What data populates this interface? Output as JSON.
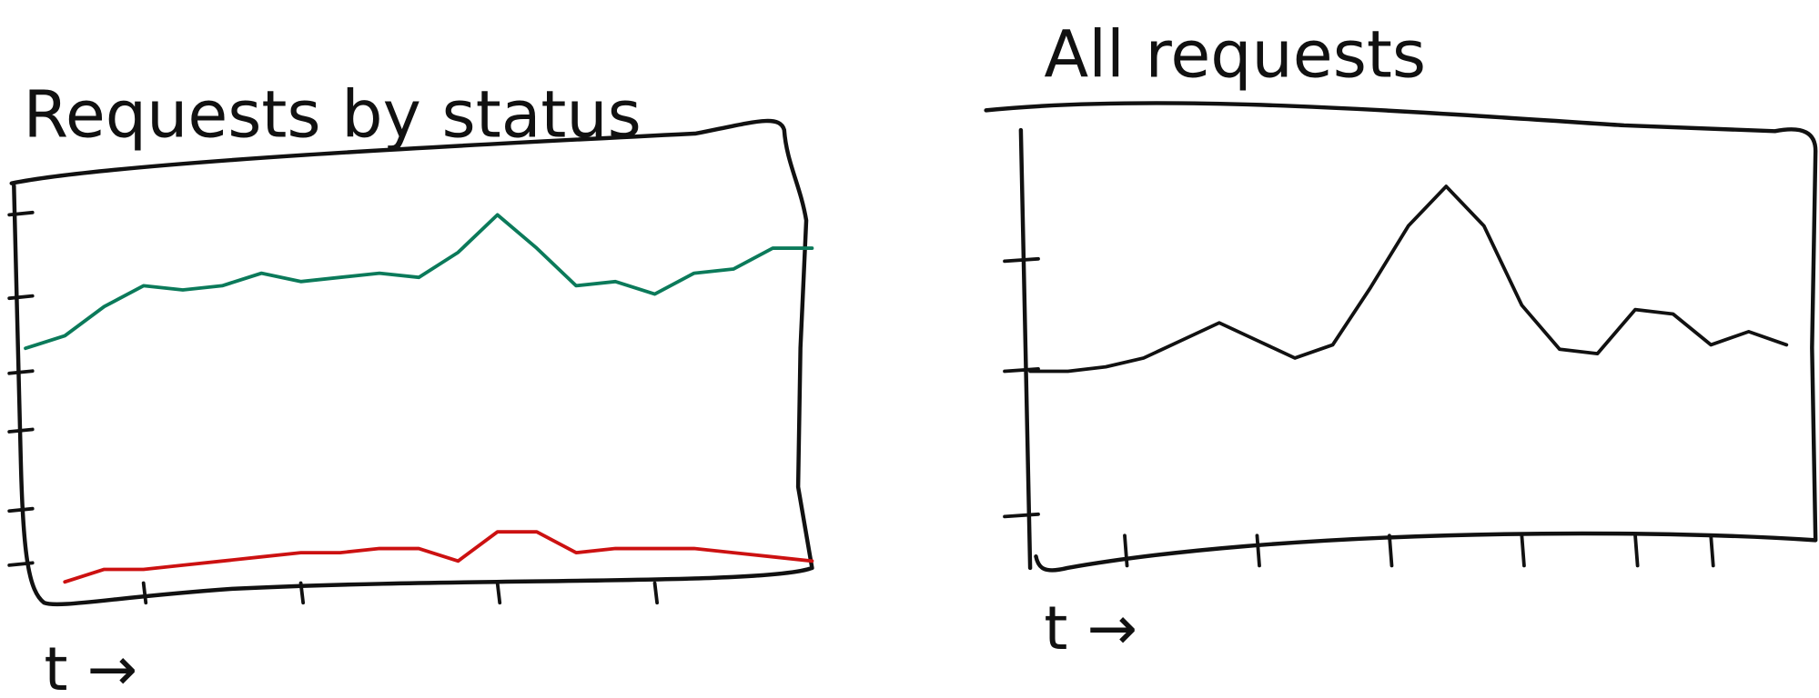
{
  "chart_data": [
    {
      "type": "line",
      "title": "Requests by status",
      "x_label": "t →",
      "x": [
        0,
        1,
        2,
        3,
        4,
        5,
        6,
        7,
        8,
        9,
        10,
        11,
        12,
        13,
        14,
        15,
        16,
        17,
        18,
        19,
        20
      ],
      "xlim": [
        0,
        20
      ],
      "ylim": [
        0,
        100
      ],
      "xticks": [
        3,
        7,
        12,
        16
      ],
      "yticks": [
        9,
        22,
        41,
        55,
        73,
        93
      ],
      "series": [
        {
          "color": "#0b7a5a",
          "values": [
            61,
            64,
            71,
            76,
            75,
            76,
            79,
            77,
            78,
            79,
            78,
            84,
            93,
            85,
            76,
            77,
            74,
            79,
            80,
            85,
            85
          ]
        },
        {
          "color": "#cc1111",
          "values": [
            null,
            5,
            8,
            8,
            9,
            10,
            11,
            12,
            12,
            13,
            13,
            10,
            17,
            17,
            12,
            13,
            13,
            13,
            12,
            11,
            10
          ]
        }
      ]
    },
    {
      "type": "line",
      "title": "All requests",
      "x_label": "t →",
      "x": [
        0,
        1,
        2,
        3,
        4,
        5,
        6,
        7,
        8,
        9,
        10,
        11,
        12,
        13,
        14,
        15,
        16,
        17,
        18,
        19,
        20
      ],
      "xlim": [
        0,
        20
      ],
      "ylim": [
        0,
        100
      ],
      "xticks": [
        2.5,
        6,
        9.5,
        13,
        16,
        18
      ],
      "yticks": [
        13,
        46,
        71
      ],
      "series": [
        {
          "color": "#111111",
          "values": [
            46,
            46,
            47,
            49,
            53,
            57,
            53,
            49,
            52,
            65,
            79,
            88,
            79,
            61,
            51,
            50,
            60,
            59,
            52,
            55,
            52
          ]
        }
      ]
    }
  ]
}
